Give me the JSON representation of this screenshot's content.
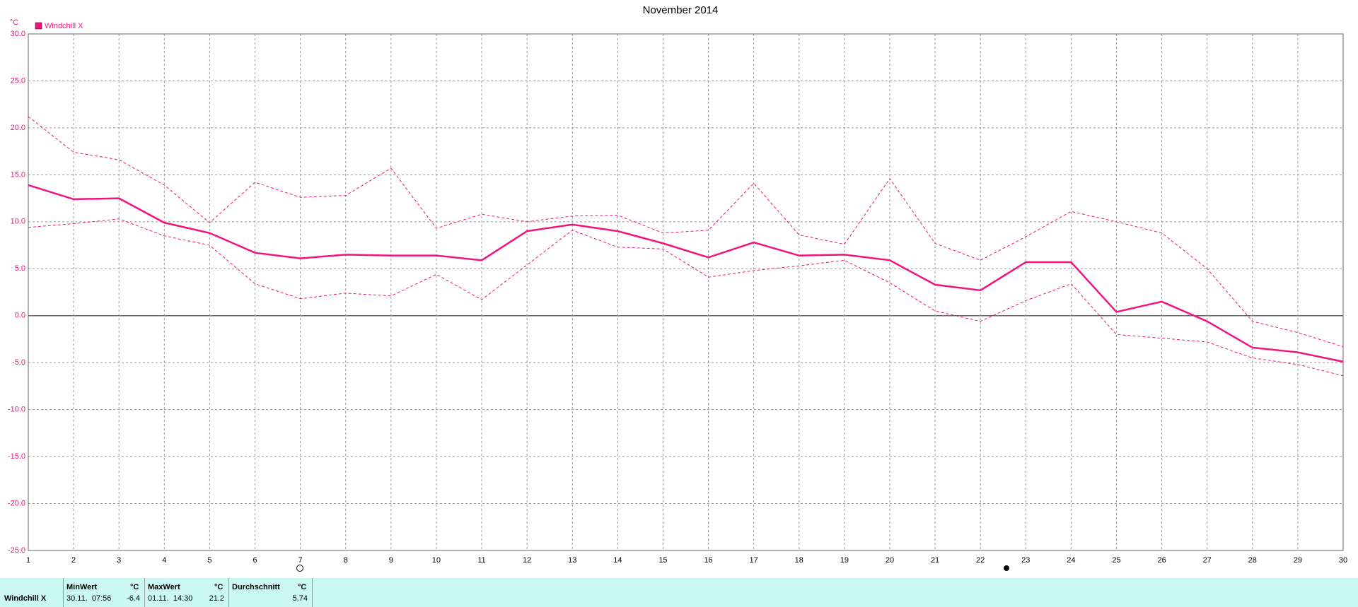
{
  "chart_data": {
    "type": "line",
    "title": "November 2014",
    "y_unit": "°C",
    "legend": "Windchill X",
    "x": [
      1,
      2,
      3,
      4,
      5,
      6,
      7,
      8,
      9,
      10,
      11,
      12,
      13,
      14,
      15,
      16,
      17,
      18,
      19,
      20,
      21,
      22,
      23,
      24,
      25,
      26,
      27,
      28,
      29,
      30
    ],
    "xlim": [
      1,
      30
    ],
    "ylim": [
      -25,
      30
    ],
    "yticks": [
      {
        "value": 30,
        "label": "30.0"
      },
      {
        "value": 25,
        "label": "25.0"
      },
      {
        "value": 20,
        "label": "20.0"
      },
      {
        "value": 15,
        "label": "15.0"
      },
      {
        "value": 10,
        "label": "10.0"
      },
      {
        "value": 5,
        "label": "5.0"
      },
      {
        "value": 0,
        "label": "0.0"
      },
      {
        "value": -5,
        "label": "-5.0"
      },
      {
        "value": -10,
        "label": "-10.0"
      },
      {
        "value": -15,
        "label": "-15.0"
      },
      {
        "value": -20,
        "label": "-20.0"
      },
      {
        "value": -25,
        "label": "-25.0"
      }
    ],
    "grid": true,
    "color": "#f0147c",
    "series": [
      {
        "name": "Windchill X",
        "style": "solid",
        "values": [
          13.9,
          12.4,
          12.5,
          9.9,
          8.8,
          6.7,
          6.1,
          6.5,
          6.4,
          6.4,
          5.9,
          9.0,
          9.7,
          9.0,
          7.7,
          6.2,
          7.8,
          6.4,
          6.5,
          5.9,
          3.3,
          2.7,
          5.7,
          5.7,
          0.4,
          1.5,
          -0.6,
          -3.4,
          -3.9,
          -4.9
        ]
      },
      {
        "style": "dashed",
        "values": [
          21.2,
          17.4,
          16.6,
          13.9,
          9.9,
          14.2,
          12.6,
          12.8,
          15.7,
          9.3,
          10.8,
          10.0,
          10.6,
          10.7,
          8.8,
          9.1,
          14.1,
          8.6,
          7.6,
          14.6,
          7.7,
          5.9,
          8.4,
          11.1,
          10.0,
          8.8,
          5.0,
          -0.6,
          -1.8,
          -3.3
        ]
      },
      {
        "style": "dashed",
        "values": [
          9.4,
          9.8,
          10.3,
          8.5,
          7.5,
          3.4,
          1.8,
          2.4,
          2.1,
          4.4,
          1.7,
          5.4,
          9.1,
          7.3,
          7.1,
          4.1,
          4.8,
          5.3,
          5.9,
          3.5,
          0.5,
          -0.6,
          1.6,
          3.4,
          -2.0,
          -2.4,
          -2.8,
          -4.5,
          -5.2,
          -6.4
        ]
      }
    ]
  },
  "table": {
    "row_label": "Windchill X",
    "columns": [
      {
        "header": "MinWert",
        "unit": "°C",
        "time": "30.11.  07:56",
        "value": "-6.4"
      },
      {
        "header": "MaxWert",
        "unit": "°C",
        "time": "01.11.  14:30",
        "value": "21.2"
      },
      {
        "header": "Durchschnitt",
        "unit": "°C",
        "time": "",
        "value": "5.74"
      }
    ]
  }
}
